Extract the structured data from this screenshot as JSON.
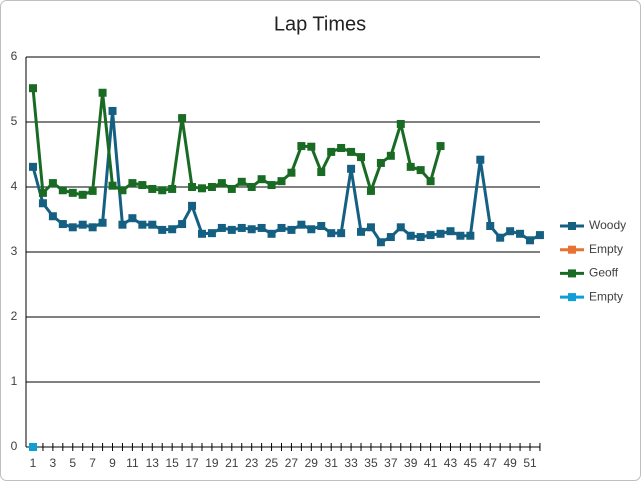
{
  "chart_data": {
    "type": "line",
    "title": "Lap Times",
    "categories": [
      1,
      null,
      3,
      null,
      5,
      null,
      7,
      null,
      9,
      null,
      11,
      null,
      13,
      null,
      15,
      null,
      17,
      null,
      19,
      null,
      21,
      null,
      23,
      null,
      25,
      null,
      27,
      null,
      29,
      null,
      31,
      null,
      33,
      null,
      35,
      null,
      37,
      null,
      39,
      null,
      41,
      null,
      43,
      null,
      45,
      null,
      47,
      null,
      49,
      null,
      51,
      null
    ],
    "series": [
      {
        "name": "Woody",
        "color": "#156082",
        "values": [
          4.31,
          3.75,
          3.55,
          3.43,
          3.38,
          3.42,
          3.38,
          3.45,
          5.17,
          3.42,
          3.52,
          3.42,
          3.42,
          3.34,
          3.35,
          3.43,
          3.71,
          3.28,
          3.29,
          3.37,
          3.34,
          3.37,
          3.35,
          3.37,
          3.28,
          3.37,
          3.34,
          3.42,
          3.35,
          3.4,
          3.29,
          3.29,
          4.28,
          3.31,
          3.38,
          3.15,
          3.23,
          3.38,
          3.25,
          3.23,
          3.26,
          3.28,
          3.32,
          3.25,
          3.25,
          4.42,
          3.4,
          3.22,
          3.32,
          3.28,
          3.18,
          3.26
        ]
      },
      {
        "name": "Empty",
        "color": "#E97132",
        "values": [
          0,
          null,
          null,
          null,
          null,
          null,
          null,
          null,
          null,
          null,
          null,
          null,
          null,
          null,
          null,
          null,
          null,
          null,
          null,
          null,
          null,
          null,
          null,
          null,
          null,
          null,
          null,
          null,
          null,
          null,
          null,
          null,
          null,
          null,
          null,
          null,
          null,
          null,
          null,
          null,
          null,
          null,
          null,
          null,
          null,
          null,
          null,
          null,
          null,
          null,
          null,
          null
        ]
      },
      {
        "name": "Geoff",
        "color": "#196B24",
        "values": [
          5.52,
          3.91,
          4.06,
          3.95,
          3.91,
          3.88,
          3.94,
          5.45,
          4.02,
          3.95,
          4.06,
          4.03,
          3.97,
          3.95,
          3.97,
          5.06,
          4.0,
          3.98,
          4.0,
          4.06,
          3.97,
          4.08,
          4.0,
          4.12,
          4.03,
          4.09,
          4.22,
          4.63,
          4.62,
          4.23,
          4.54,
          4.6,
          4.54,
          4.46,
          3.94,
          4.37,
          4.48,
          4.97,
          4.31,
          4.26,
          4.09,
          4.63,
          null,
          null,
          null,
          null,
          null,
          null,
          null,
          null,
          null,
          null
        ]
      },
      {
        "name": "Empty",
        "color": "#0F9ED5",
        "values": [
          0,
          null,
          null,
          null,
          null,
          null,
          null,
          null,
          null,
          null,
          null,
          null,
          null,
          null,
          null,
          null,
          null,
          null,
          null,
          null,
          null,
          null,
          null,
          null,
          null,
          null,
          null,
          null,
          null,
          null,
          null,
          null,
          null,
          null,
          null,
          null,
          null,
          null,
          null,
          null,
          null,
          null,
          null,
          null,
          null,
          null,
          null,
          null,
          null,
          null,
          null,
          null
        ]
      }
    ],
    "ylim": [
      0,
      6
    ],
    "yticks": [
      0,
      1,
      2,
      3,
      4,
      5,
      6
    ],
    "grid": true,
    "legend": "right"
  }
}
